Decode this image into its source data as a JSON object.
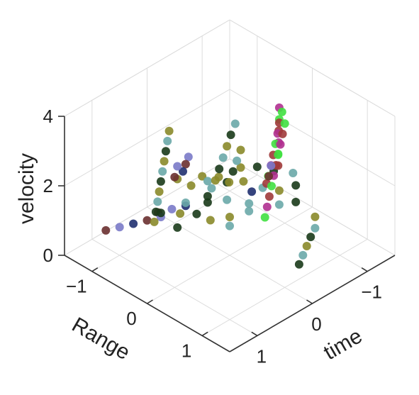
{
  "chart_data": {
    "type": "scatter",
    "title": "",
    "dimensions": 3,
    "xlabel": "time",
    "ylabel": "Range",
    "zlabel": "velocity",
    "xlim": [
      -1.5,
      1.5
    ],
    "ylim": [
      -1.5,
      1.5
    ],
    "zlim": [
      0,
      4
    ],
    "xticks": [
      {
        "value": -1,
        "label": "−1"
      },
      {
        "value": 0,
        "label": "0"
      },
      {
        "value": 1,
        "label": "1"
      }
    ],
    "yticks": [
      {
        "value": 1,
        "label": "1"
      },
      {
        "value": 0,
        "label": "0"
      },
      {
        "value": -1,
        "label": "−1"
      }
    ],
    "zticks": [
      {
        "value": 0,
        "label": "0"
      },
      {
        "value": 2,
        "label": "2"
      },
      {
        "value": 4,
        "label": "4"
      }
    ],
    "grid": true,
    "legend": "none",
    "point_colors": [
      "#8a8a2a",
      "#a03a3a",
      "#a86aa8",
      "#7a7ac8",
      "#6aa8a8",
      "#b03090",
      "#9aa020",
      "#6a3030",
      "#1a3a1a",
      "#40e040",
      "#d04020",
      "#203070"
    ],
    "series": [
      {
        "points": [
          [
            -0.4,
            -0.15,
            1.62
          ],
          [
            -0.55,
            0.05,
            1.48
          ],
          [
            -0.3,
            -0.35,
            1.5
          ],
          [
            -0.7,
            0.2,
            1.4
          ],
          [
            -0.1,
            -0.5,
            1.58
          ],
          [
            -0.85,
            0.35,
            1.55
          ],
          [
            0.05,
            -0.65,
            1.45
          ],
          [
            -0.25,
            0.1,
            1.35
          ],
          [
            0.2,
            -0.2,
            1.52
          ],
          [
            -0.6,
            -0.4,
            1.6
          ],
          [
            0.35,
            -0.45,
            1.42
          ],
          [
            -0.9,
            -0.1,
            1.5
          ],
          [
            0.15,
            0.15,
            1.38
          ],
          [
            -0.45,
            0.45,
            1.46
          ],
          [
            0.5,
            -0.1,
            1.56
          ],
          [
            -0.2,
            -0.7,
            1.44
          ],
          [
            0.3,
            0.3,
            1.4
          ],
          [
            -0.75,
            -0.25,
            1.62
          ],
          [
            0.6,
            -0.3,
            1.48
          ],
          [
            -0.05,
            0.3,
            1.5
          ],
          [
            0.7,
            -0.55,
            1.36
          ],
          [
            -0.35,
            -0.55,
            1.42
          ],
          [
            0.0,
            -0.05,
            1.55
          ],
          [
            -0.65,
            0.55,
            1.44
          ],
          [
            0.45,
            0.1,
            1.52
          ],
          [
            -1.0,
            0.15,
            1.58
          ],
          [
            0.8,
            -0.15,
            1.4
          ],
          [
            0.1,
            -0.85,
            1.5
          ]
        ]
      },
      {
        "points": [
          [
            -0.65,
            0.3,
            3.8
          ],
          [
            -0.62,
            0.28,
            3.5
          ],
          [
            -0.6,
            0.27,
            3.2
          ],
          [
            -0.58,
            0.25,
            2.9
          ],
          [
            -0.55,
            0.24,
            2.6
          ],
          [
            -0.53,
            0.22,
            2.3
          ],
          [
            -0.5,
            0.2,
            2.0
          ],
          [
            -0.48,
            0.19,
            1.8
          ],
          [
            -0.8,
            0.1,
            3.6
          ],
          [
            -0.78,
            0.12,
            3.3
          ],
          [
            -0.76,
            0.13,
            3.0
          ],
          [
            -0.74,
            0.15,
            2.7
          ],
          [
            -0.72,
            0.16,
            2.4
          ],
          [
            -0.7,
            0.18,
            2.1
          ]
        ]
      },
      {
        "points": [
          [
            -0.15,
            -0.05,
            3.6
          ],
          [
            -0.1,
            -0.08,
            3.3
          ],
          [
            -0.05,
            -0.1,
            3.0
          ],
          [
            0.0,
            -0.12,
            2.7
          ],
          [
            0.05,
            -0.14,
            2.4
          ],
          [
            0.1,
            -0.16,
            2.1
          ],
          [
            0.15,
            -0.18,
            1.9
          ],
          [
            0.2,
            -0.2,
            1.7
          ],
          [
            0.1,
            0.3,
            3.4
          ],
          [
            0.14,
            0.27,
            3.1
          ],
          [
            0.18,
            0.24,
            2.8
          ],
          [
            0.22,
            0.21,
            2.5
          ]
        ]
      },
      {
        "points": [
          [
            -0.55,
            0.45,
            3.7
          ],
          [
            -0.53,
            0.43,
            3.4
          ],
          [
            -0.51,
            0.41,
            3.1
          ],
          [
            -0.49,
            0.39,
            2.8
          ],
          [
            -0.47,
            0.37,
            2.5
          ],
          [
            -0.45,
            0.35,
            2.2
          ],
          [
            -0.43,
            0.33,
            1.9
          ],
          [
            -0.41,
            0.31,
            1.6
          ],
          [
            -0.39,
            0.29,
            1.3
          ],
          [
            -0.37,
            0.27,
            1.0
          ]
        ]
      },
      {
        "points": [
          [
            0.4,
            -0.7,
            3.3
          ],
          [
            0.41,
            -0.72,
            3.0
          ],
          [
            0.42,
            -0.74,
            2.7
          ],
          [
            0.43,
            -0.76,
            2.4
          ],
          [
            0.44,
            -0.78,
            2.1
          ],
          [
            0.45,
            -0.8,
            1.8
          ],
          [
            0.46,
            -0.82,
            1.5
          ],
          [
            0.47,
            -0.84,
            1.2
          ],
          [
            0.48,
            -0.86,
            0.9
          ],
          [
            0.49,
            -0.88,
            0.6
          ]
        ]
      },
      {
        "points": [
          [
            0.3,
            -0.95,
            0.5
          ],
          [
            0.45,
            -1.05,
            0.45
          ],
          [
            0.6,
            -1.15,
            0.4
          ],
          [
            0.75,
            -1.25,
            0.35
          ],
          [
            0.9,
            -1.35,
            0.3
          ],
          [
            -0.1,
            -0.9,
            0.5
          ],
          [
            0.05,
            -1.0,
            0.45
          ],
          [
            0.2,
            -1.1,
            0.4
          ]
        ]
      },
      {
        "points": [
          [
            -0.9,
            0.65,
            0.55
          ],
          [
            -0.75,
            0.72,
            0.5
          ],
          [
            -0.6,
            0.8,
            0.45
          ],
          [
            -0.45,
            0.88,
            0.4
          ],
          [
            -0.3,
            0.96,
            0.35
          ],
          [
            -1.05,
            0.5,
            0.6
          ]
        ]
      },
      {
        "points": [
          [
            0.25,
            -0.5,
            2.6
          ],
          [
            0.28,
            -0.52,
            2.4
          ],
          [
            0.31,
            -0.54,
            2.2
          ],
          [
            -0.2,
            0.55,
            2.9
          ],
          [
            -0.18,
            0.53,
            2.6
          ],
          [
            0.0,
            0.4,
            2.2
          ],
          [
            0.55,
            -0.4,
            2.7
          ],
          [
            0.58,
            -0.42,
            2.4
          ]
        ]
      }
    ]
  }
}
